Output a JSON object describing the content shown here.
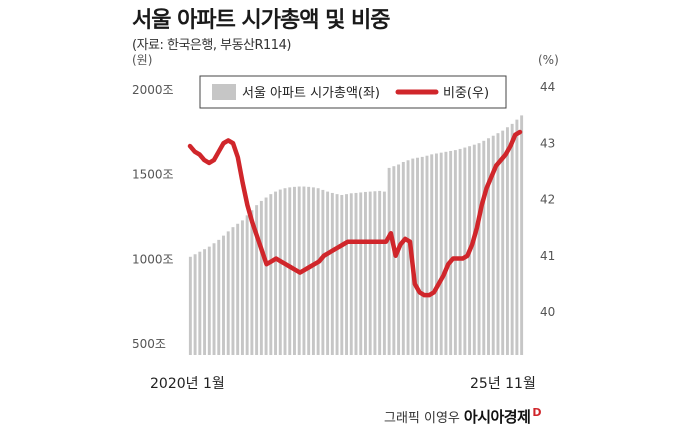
{
  "header": {
    "title": "서울 아파트 시가총액 및 비중",
    "source": "(자료: 한국은행, 부동산R114)"
  },
  "footer": {
    "credit": "그래픽 이영우",
    "brand": "아시아경제",
    "brand_mark": "D"
  },
  "chart_data": {
    "type": "bar",
    "x_start_label": "2020년 1월",
    "x_end_label": "25년 11월",
    "y_left": {
      "unit": "(원)",
      "ticks": [
        "2000조",
        "1500조",
        "1000조",
        "500조"
      ],
      "values": [
        2000,
        1500,
        1000,
        500
      ],
      "range": [
        500,
        2000
      ]
    },
    "y_right": {
      "unit": "(%)",
      "ticks": [
        "44",
        "43",
        "42",
        "41",
        "40"
      ],
      "values": [
        44,
        43,
        42,
        41,
        40
      ],
      "range": [
        39.75,
        44
      ]
    },
    "legend": {
      "bar_label": "서울 아파트 시가총액(좌)",
      "line_label": "비중(우)",
      "placement": "top"
    },
    "colors": {
      "bar": "#c6c6c6",
      "line": "#d0262b"
    },
    "grid": false,
    "series": [
      {
        "kind": "bar",
        "axis": "left",
        "values": [
          1015,
          1030,
          1045,
          1060,
          1075,
          1095,
          1115,
          1140,
          1165,
          1190,
          1210,
          1230,
          1260,
          1290,
          1320,
          1345,
          1365,
          1385,
          1400,
          1412,
          1420,
          1425,
          1428,
          1430,
          1430,
          1428,
          1425,
          1420,
          1410,
          1400,
          1392,
          1385,
          1380,
          1385,
          1390,
          1392,
          1395,
          1398,
          1400,
          1402,
          1404,
          1400,
          1540,
          1550,
          1560,
          1575,
          1585,
          1595,
          1600,
          1605,
          1612,
          1620,
          1625,
          1630,
          1635,
          1640,
          1645,
          1652,
          1660,
          1668,
          1677,
          1686,
          1700,
          1715,
          1730,
          1745,
          1760,
          1780,
          1800,
          1825,
          1850
        ]
      },
      {
        "kind": "line",
        "axis": "right",
        "values": [
          42.95,
          42.85,
          42.8,
          42.7,
          42.65,
          42.7,
          42.85,
          43.0,
          43.05,
          43.0,
          42.75,
          42.3,
          41.9,
          41.6,
          41.35,
          41.1,
          40.85,
          40.9,
          40.95,
          40.9,
          40.85,
          40.8,
          40.75,
          40.7,
          40.75,
          40.8,
          40.85,
          40.9,
          41.0,
          41.05,
          41.1,
          41.15,
          41.2,
          41.25,
          41.25,
          41.25,
          41.25,
          41.25,
          41.25,
          41.25,
          41.25,
          41.25,
          41.4,
          41.0,
          41.2,
          41.3,
          41.25,
          40.5,
          40.35,
          40.3,
          40.3,
          40.35,
          40.5,
          40.65,
          40.85,
          40.95,
          40.95,
          40.95,
          41.0,
          41.2,
          41.5,
          41.9,
          42.2,
          42.4,
          42.6,
          42.7,
          42.8,
          42.95,
          43.15,
          43.2
        ]
      }
    ]
  }
}
